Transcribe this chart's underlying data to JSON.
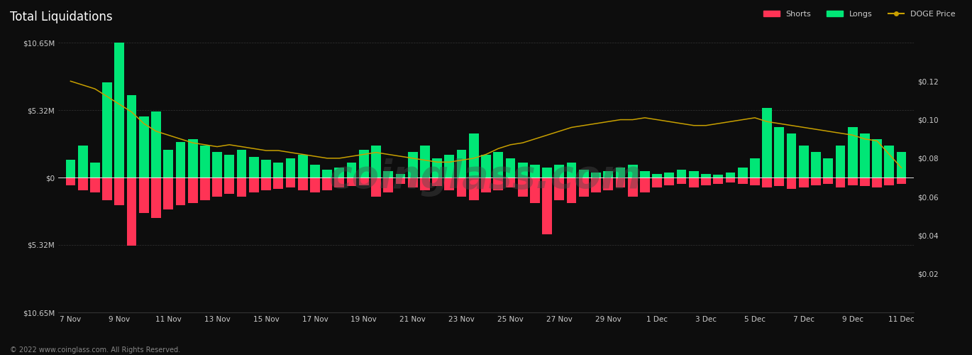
{
  "title": "Total Liquidations",
  "background_color": "#0d0d0d",
  "text_color": "#cccccc",
  "grid_color": "#333333",
  "bar_width": 0.8,
  "x_labels": [
    "7 Nov",
    "9 Nov",
    "11 Nov",
    "13 Nov",
    "15 Nov",
    "17 Nov",
    "19 Nov",
    "21 Nov",
    "23 Nov",
    "25 Nov",
    "27 Nov",
    "29 Nov",
    "1 Dec",
    "3 Dec",
    "5 Dec",
    "7 Dec",
    "9 Dec",
    "11 Dec"
  ],
  "longs": [
    1.4,
    2.5,
    1.2,
    7.5,
    10.65,
    6.5,
    4.8,
    5.2,
    2.2,
    2.8,
    3.0,
    2.5,
    2.0,
    1.8,
    2.2,
    1.6,
    1.4,
    1.2,
    1.5,
    1.8,
    1.0,
    0.6,
    0.8,
    1.2,
    2.2,
    2.5,
    0.5,
    0.3,
    2.0,
    2.5,
    1.5,
    1.8,
    2.2,
    3.5,
    1.8,
    2.0,
    1.5,
    1.2,
    1.0,
    0.8,
    1.0,
    1.2,
    0.6,
    0.4,
    0.5,
    0.8,
    1.0,
    0.5,
    0.3,
    0.4,
    0.6,
    0.5,
    0.3,
    0.2,
    0.4,
    0.8,
    1.5,
    5.5,
    4.0,
    3.5,
    2.5,
    2.0,
    1.5,
    2.5,
    4.0,
    3.5,
    3.0,
    2.5,
    2.0
  ],
  "shorts": [
    -0.6,
    -1.0,
    -1.2,
    -1.8,
    -2.2,
    -5.4,
    -2.8,
    -3.2,
    -2.5,
    -2.2,
    -2.0,
    -1.8,
    -1.5,
    -1.3,
    -1.5,
    -1.2,
    -1.0,
    -0.9,
    -0.8,
    -1.0,
    -1.2,
    -1.0,
    -0.8,
    -0.7,
    -0.6,
    -1.5,
    -1.2,
    -0.5,
    -0.8,
    -1.0,
    -0.7,
    -1.0,
    -1.5,
    -1.8,
    -1.2,
    -1.0,
    -0.8,
    -1.5,
    -2.0,
    -4.5,
    -1.8,
    -2.0,
    -1.5,
    -1.2,
    -1.0,
    -0.8,
    -1.5,
    -1.2,
    -0.8,
    -0.6,
    -0.5,
    -0.8,
    -0.6,
    -0.5,
    -0.4,
    -0.5,
    -0.6,
    -0.8,
    -0.7,
    -0.9,
    -0.8,
    -0.6,
    -0.5,
    -0.8,
    -0.6,
    -0.7,
    -0.8,
    -0.6,
    -0.5
  ],
  "doge_price": [
    0.12,
    0.118,
    0.116,
    0.112,
    0.108,
    0.104,
    0.098,
    0.094,
    0.092,
    0.09,
    0.088,
    0.087,
    0.086,
    0.087,
    0.086,
    0.085,
    0.084,
    0.084,
    0.083,
    0.082,
    0.081,
    0.08,
    0.08,
    0.081,
    0.082,
    0.083,
    0.082,
    0.081,
    0.08,
    0.079,
    0.078,
    0.078,
    0.079,
    0.08,
    0.082,
    0.085,
    0.087,
    0.088,
    0.09,
    0.092,
    0.094,
    0.096,
    0.097,
    0.098,
    0.099,
    0.1,
    0.1,
    0.101,
    0.1,
    0.099,
    0.098,
    0.097,
    0.097,
    0.098,
    0.099,
    0.1,
    0.101,
    0.099,
    0.098,
    0.097,
    0.096,
    0.095,
    0.094,
    0.093,
    0.092,
    0.09,
    0.089,
    0.082,
    0.075
  ],
  "ylim_bars": [
    -10.65,
    10.65
  ],
  "yticks_bars": [
    -10.65,
    -5.32,
    0,
    5.32,
    10.65
  ],
  "ylim_price": [
    0.0,
    0.14
  ],
  "yticks_price": [
    0.02,
    0.04,
    0.06,
    0.08,
    0.1,
    0.12
  ],
  "ylabels_price": [
    "$0.02",
    "$0.04",
    "$0.06",
    "$0.08",
    "$0.10",
    "$0.12"
  ],
  "shorts_color": "#ff3355",
  "longs_color": "#00e676",
  "price_color": "#c8a000",
  "watermark_color": "#4a4a4a",
  "watermark_text": "coinglass.com",
  "footer_text": "© 2022 www.coinglass.com. All Rights Reserved.",
  "legend_shorts": "Shorts",
  "legend_longs": "Longs",
  "legend_price": "DOGE Price"
}
